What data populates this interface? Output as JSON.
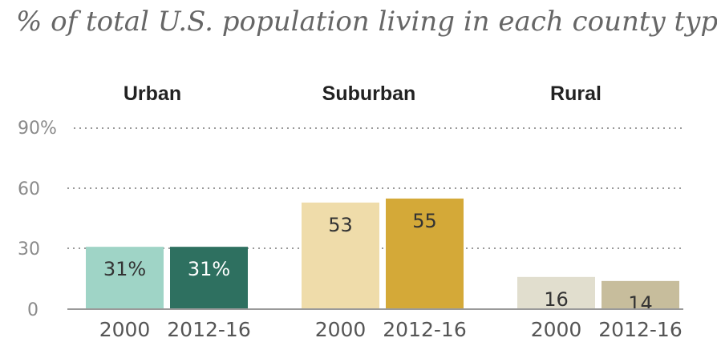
{
  "chart_data": {
    "type": "bar",
    "subtitle": "% of total U.S. population living in each county type",
    "yticks": [
      "90%",
      "60",
      "30",
      "0"
    ],
    "ylim": [
      0,
      90
    ],
    "grid": true,
    "groups": [
      {
        "name": "Urban",
        "bars": [
          {
            "category": "2000",
            "value": 31,
            "label": "31%",
            "color": "#9fd4c6",
            "labelColor": "#333333"
          },
          {
            "category": "2012-16",
            "value": 31,
            "label": "31%",
            "color": "#2e7060",
            "labelColor": "#ffffff"
          }
        ]
      },
      {
        "name": "Suburban",
        "bars": [
          {
            "category": "2000",
            "value": 53,
            "label": "53",
            "color": "#efdcaa",
            "labelColor": "#333333"
          },
          {
            "category": "2012-16",
            "value": 55,
            "label": "55",
            "color": "#d4a938",
            "labelColor": "#333333"
          }
        ]
      },
      {
        "name": "Rural",
        "bars": [
          {
            "category": "2000",
            "value": 16,
            "label": "16",
            "color": "#e1dece",
            "labelColor": "#333333"
          },
          {
            "category": "2012-16",
            "value": 14,
            "label": "14",
            "color": "#c7bd9c",
            "labelColor": "#333333"
          }
        ]
      }
    ]
  }
}
